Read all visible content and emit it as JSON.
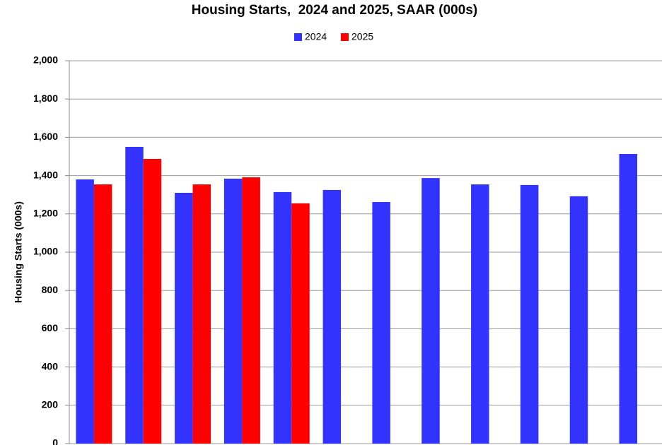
{
  "chart_data": {
    "type": "bar",
    "title": "Housing Starts,  2024 and 2025, SAAR (000s)",
    "y_label": "Housing Starts (000s)",
    "categories": [
      null,
      null,
      null,
      null,
      null,
      null,
      null,
      null,
      null,
      null,
      null,
      null
    ],
    "series": [
      {
        "name": "2024",
        "color": "#3333ff",
        "values": [
          1380,
          1550,
          1310,
          1384,
          1314,
          1325,
          1262,
          1387,
          1354,
          1351,
          1292,
          1513
        ]
      },
      {
        "name": "2025",
        "color": "#ff0000",
        "values": [
          1354,
          1487,
          1354,
          1391,
          1255,
          null,
          null,
          null,
          null,
          null,
          null,
          null
        ]
      }
    ],
    "ylim": [
      0,
      2000
    ],
    "yticks": [
      0,
      200,
      400,
      600,
      800,
      {
        "value": 1000,
        "label": "1,000"
      },
      {
        "value": 1200,
        "label": "1,200"
      },
      {
        "value": 1400,
        "label": "1,400"
      },
      {
        "value": 1600,
        "label": "1,600"
      },
      {
        "value": 1800,
        "label": "1,800"
      },
      {
        "value": 2000,
        "label": "2,000"
      }
    ],
    "grid": true,
    "legend": "top"
  }
}
